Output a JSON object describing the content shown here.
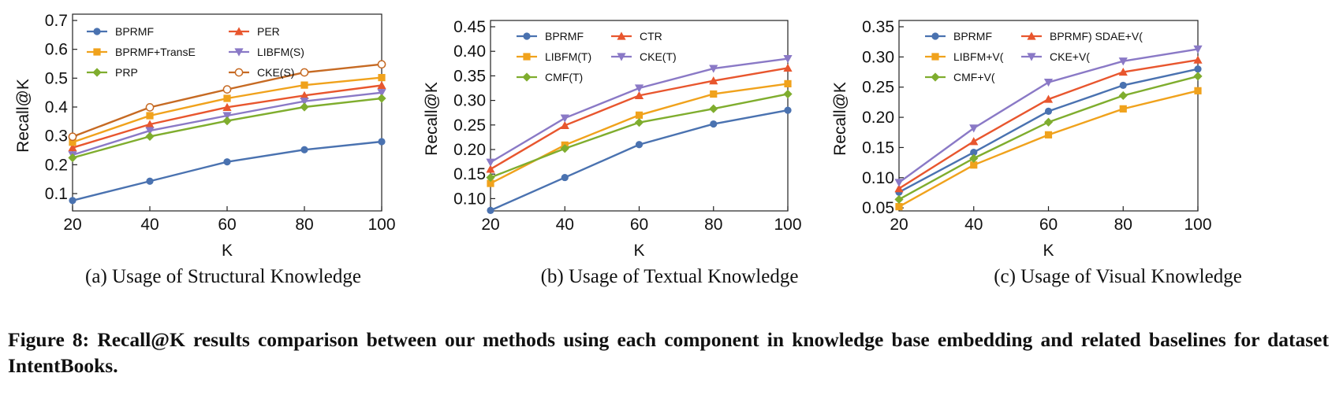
{
  "caption": "Figure 8: Recall@K results comparison between our methods using each component in knowledge base embedding and related baselines for dataset IntentBooks.",
  "chart_data": [
    {
      "type": "line",
      "subtitle": "(a) Usage of Structural Knowledge",
      "xlabel": "K",
      "ylabel": "Recall@K",
      "x": [
        20,
        40,
        60,
        80,
        100
      ],
      "xlim": [
        20,
        100
      ],
      "ylim": [
        0.04,
        0.7
      ],
      "yticks": [
        "0.1",
        "0.2",
        "0.3",
        "0.4",
        "0.5",
        "0.6",
        "0.7"
      ],
      "xticks": [
        "20",
        "40",
        "60",
        "80",
        "100"
      ],
      "grid": false,
      "legend_position": "top-left",
      "series": [
        {
          "name": "BPRMF",
          "values": [
            0.076,
            0.143,
            0.21,
            0.252,
            0.28
          ],
          "color": "#4a72b0",
          "marker": "circle"
        },
        {
          "name": "PER",
          "values": [
            0.259,
            0.34,
            0.399,
            0.44,
            0.475
          ],
          "color": "#e8562e",
          "marker": "triangle"
        },
        {
          "name": "BPRMF+TransE",
          "values": [
            0.278,
            0.37,
            0.43,
            0.476,
            0.502
          ],
          "color": "#f0a21c",
          "marker": "square"
        },
        {
          "name": "LIBFM(S)",
          "values": [
            0.234,
            0.318,
            0.37,
            0.42,
            0.45
          ],
          "color": "#8a79c6",
          "marker": "triangle-down"
        },
        {
          "name": "PRP",
          "values": [
            0.224,
            0.298,
            0.352,
            0.4,
            0.43
          ],
          "color": "#7fad2e",
          "marker": "diamond"
        },
        {
          "name": "CKE(S)",
          "values": [
            0.297,
            0.399,
            0.461,
            0.52,
            0.548
          ],
          "color": "#c66a23",
          "marker": "open-circle"
        }
      ]
    },
    {
      "type": "line",
      "subtitle": "(b) Usage of Textual Knowledge",
      "xlabel": "K",
      "ylabel": "Recall@K",
      "x": [
        20,
        40,
        60,
        80,
        100
      ],
      "xlim": [
        20,
        100
      ],
      "ylim": [
        0.075,
        0.45
      ],
      "yticks": [
        "0.10",
        "0.15",
        "0.20",
        "0.25",
        "0.30",
        "0.35",
        "0.40",
        "0.45"
      ],
      "xticks": [
        "20",
        "40",
        "60",
        "80",
        "100"
      ],
      "grid": false,
      "legend_position": "top-left",
      "series": [
        {
          "name": "BPRMF",
          "values": [
            0.076,
            0.143,
            0.21,
            0.252,
            0.28
          ],
          "color": "#4a72b0",
          "marker": "circle"
        },
        {
          "name": "CTR",
          "values": [
            0.16,
            0.249,
            0.31,
            0.34,
            0.366
          ],
          "color": "#e8562e",
          "marker": "triangle"
        },
        {
          "name": "LIBFM(T)",
          "values": [
            0.131,
            0.209,
            0.27,
            0.313,
            0.334
          ],
          "color": "#f0a21c",
          "marker": "square"
        },
        {
          "name": "CKE(T)",
          "values": [
            0.174,
            0.264,
            0.325,
            0.365,
            0.385
          ],
          "color": "#8a79c6",
          "marker": "triangle-down"
        },
        {
          "name": "CMF(T)",
          "values": [
            0.143,
            0.202,
            0.255,
            0.283,
            0.313
          ],
          "color": "#7fad2e",
          "marker": "diamond"
        }
      ]
    },
    {
      "type": "line",
      "subtitle": "(c) Usage of Visual Knowledge",
      "xlabel": "K",
      "ylabel": "Recall@K",
      "x": [
        20,
        40,
        60,
        80,
        100
      ],
      "xlim": [
        20,
        100
      ],
      "ylim": [
        0.045,
        0.35
      ],
      "yticks": [
        "0.05",
        "0.10",
        "0.15",
        "0.20",
        "0.25",
        "0.30",
        "0.35"
      ],
      "xticks": [
        "20",
        "40",
        "60",
        "80",
        "100"
      ],
      "grid": false,
      "legend_position": "top-left",
      "series": [
        {
          "name": "BPRMF",
          "values": [
            0.076,
            0.142,
            0.21,
            0.253,
            0.28
          ],
          "color": "#4a72b0",
          "marker": "circle"
        },
        {
          "name": "BPRMF) SDAE+V(",
          "values": [
            0.082,
            0.16,
            0.23,
            0.275,
            0.295
          ],
          "color": "#e8562e",
          "marker": "triangle"
        },
        {
          "name": "LIBFM+V(",
          "values": [
            0.052,
            0.121,
            0.171,
            0.214,
            0.244
          ],
          "color": "#f0a21c",
          "marker": "square"
        },
        {
          "name": "CKE+V(",
          "values": [
            0.092,
            0.182,
            0.258,
            0.293,
            0.313
          ],
          "color": "#8a79c6",
          "marker": "triangle-down"
        },
        {
          "name": "CMF+V(",
          "values": [
            0.064,
            0.132,
            0.192,
            0.236,
            0.268
          ],
          "color": "#7fad2e",
          "marker": "diamond"
        }
      ]
    }
  ]
}
